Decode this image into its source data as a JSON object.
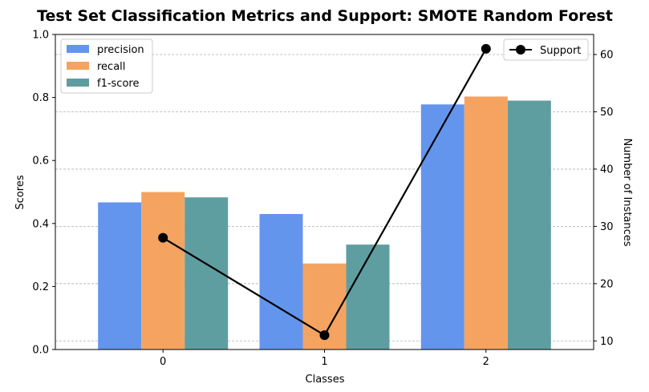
{
  "chart_data": {
    "type": "bar",
    "title": "Test Set Classification Metrics and Support: SMOTE Random Forest",
    "xlabel": "Classes",
    "ylabel": "Scores",
    "y2label": "Number of Instances",
    "categories": [
      "0",
      "1",
      "2"
    ],
    "ylim": [
      0,
      1.0
    ],
    "y2lim": [
      8.5,
      63.5
    ],
    "yticks": [
      "0.0",
      "0.2",
      "0.4",
      "0.6",
      "0.8",
      "1.0"
    ],
    "y2ticks": [
      "10",
      "20",
      "30",
      "40",
      "50",
      "60"
    ],
    "grid": "horizontal dashed (secondary axis)",
    "series": [
      {
        "name": "precision",
        "values": [
          0.467,
          0.43,
          0.778
        ],
        "color": "#6495ED"
      },
      {
        "name": "recall",
        "values": [
          0.5,
          0.273,
          0.803
        ],
        "color": "#F4A460"
      },
      {
        "name": "f1-score",
        "values": [
          0.483,
          0.333,
          0.79
        ],
        "color": "#5F9EA0"
      }
    ],
    "line_series": {
      "name": "Support",
      "values": [
        28,
        11,
        61
      ],
      "color": "#000000"
    },
    "legend_left_position": "upper left",
    "legend_right_position": "upper right"
  }
}
